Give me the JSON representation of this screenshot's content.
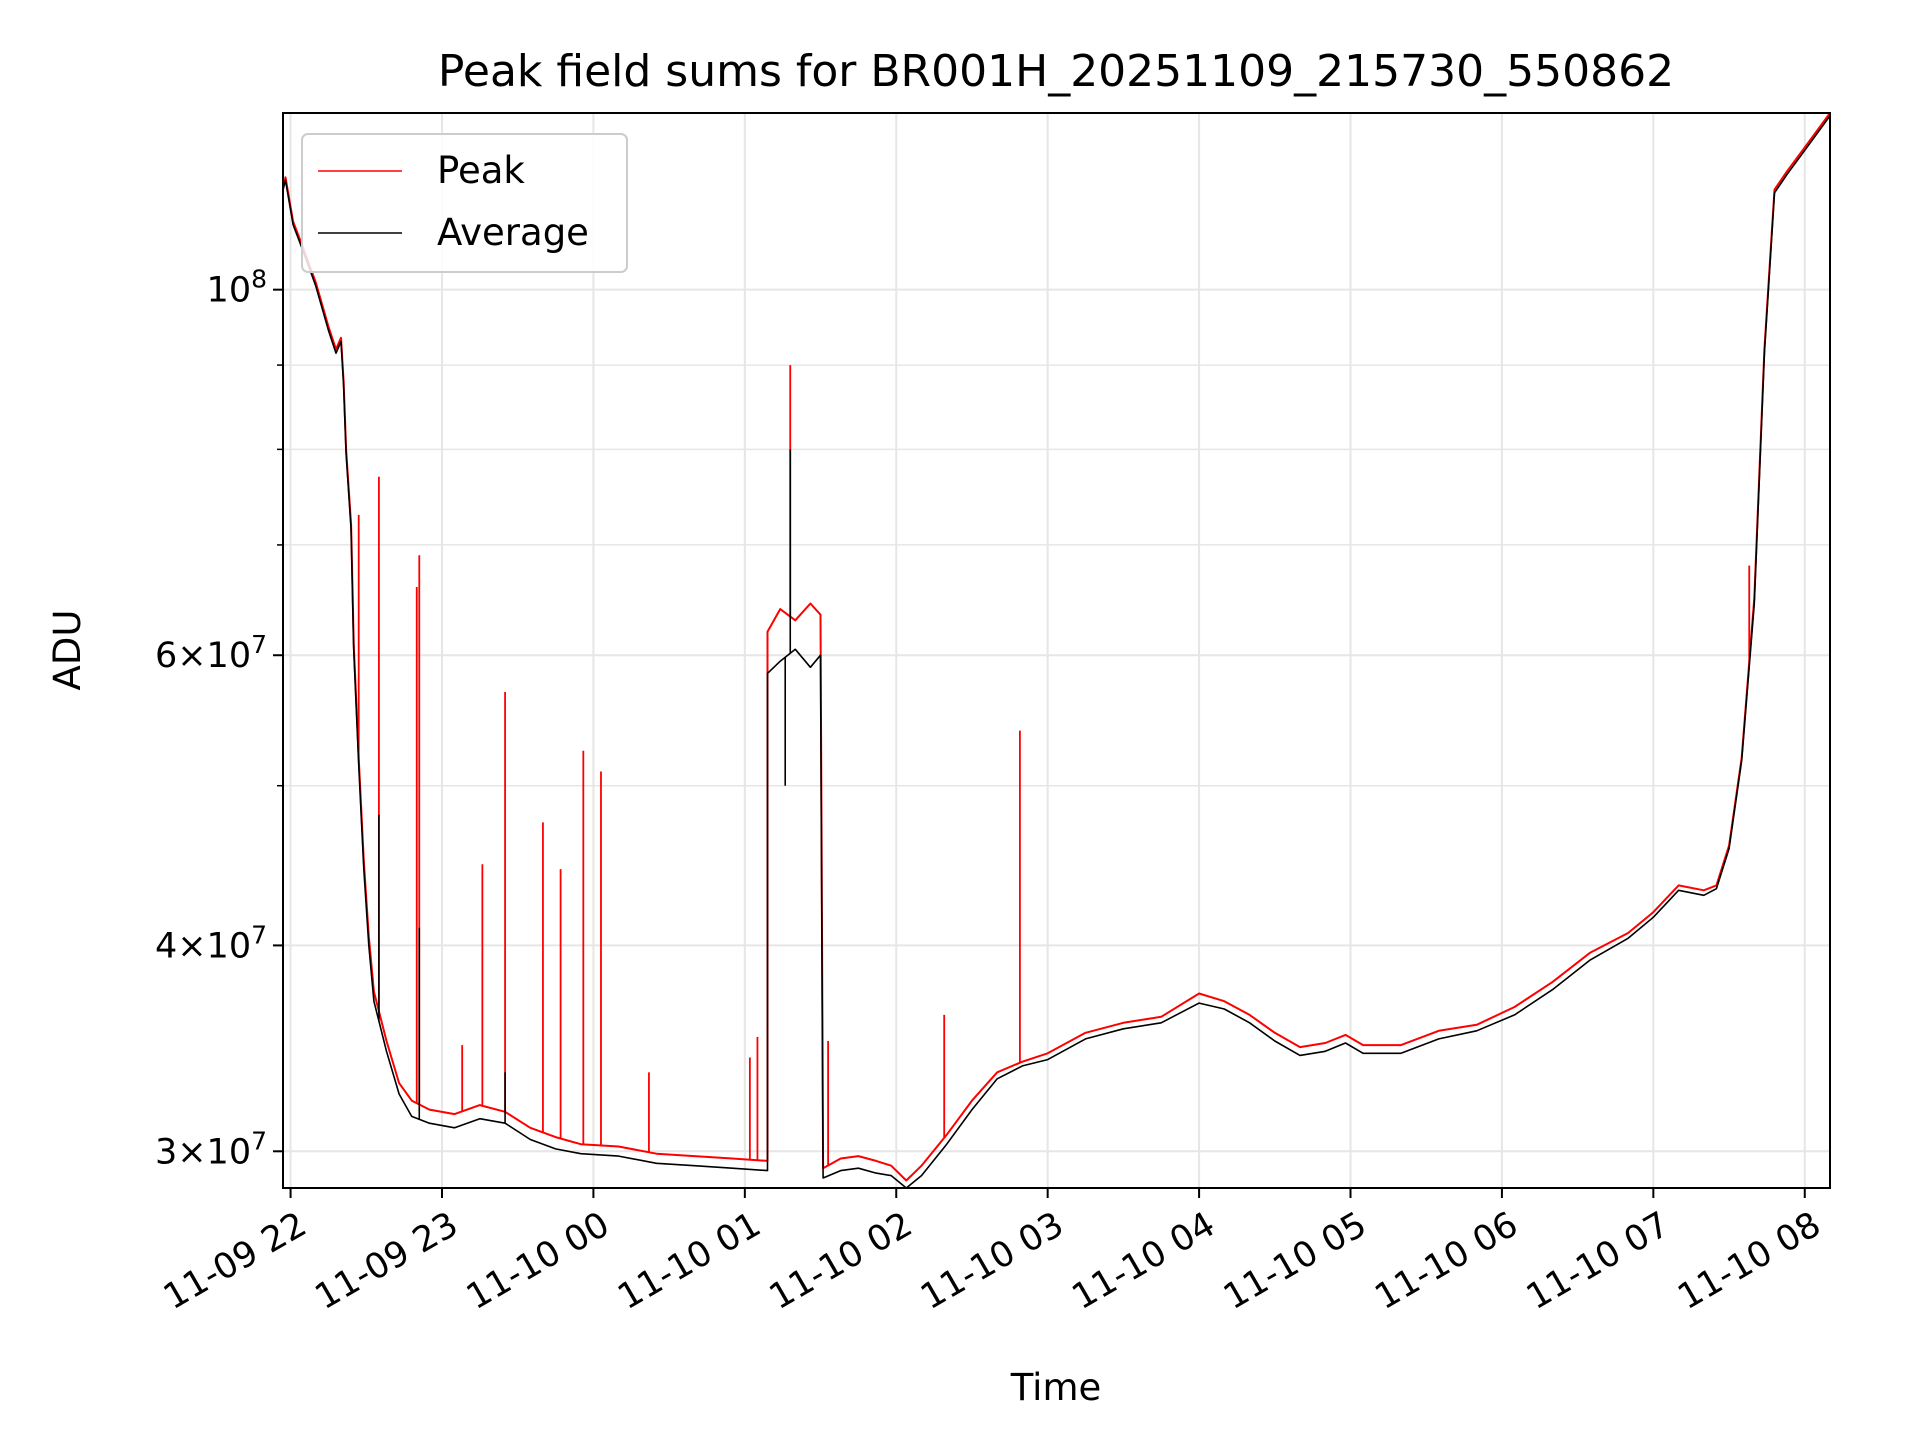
{
  "chart_data": {
    "type": "line",
    "title": "Peak field sums for BR001H_20251109_215730_550862",
    "xlabel": "Time",
    "ylabel": "ADU",
    "xlim": [
      "2025-11-09 21:57",
      "2025-11-10 08:10"
    ],
    "ylim": [
      28500000,
      128000000
    ],
    "yscale": "log",
    "grid": true,
    "legend_position": "top-left",
    "x_ticks": [
      {
        "label": "11-09 22",
        "value": "2025-11-09 22:00"
      },
      {
        "label": "11-09 23",
        "value": "2025-11-09 23:00"
      },
      {
        "label": "11-10 00",
        "value": "2025-11-10 00:00"
      },
      {
        "label": "11-10 01",
        "value": "2025-11-10 01:00"
      },
      {
        "label": "11-10 02",
        "value": "2025-11-10 02:00"
      },
      {
        "label": "11-10 03",
        "value": "2025-11-10 03:00"
      },
      {
        "label": "11-10 04",
        "value": "2025-11-10 04:00"
      },
      {
        "label": "11-10 05",
        "value": "2025-11-10 05:00"
      },
      {
        "label": "11-10 06",
        "value": "2025-11-10 06:00"
      },
      {
        "label": "11-10 07",
        "value": "2025-11-10 07:00"
      },
      {
        "label": "11-10 08",
        "value": "2025-11-10 08:00"
      }
    ],
    "y_ticks": [
      {
        "base": "3",
        "exp": "7",
        "value": 30000000
      },
      {
        "base": "4",
        "exp": "7",
        "value": 40000000
      },
      {
        "base": "6",
        "exp": "7",
        "value": 60000000
      },
      {
        "base": "",
        "exp": "8",
        "value": 100000000
      }
    ],
    "series": [
      {
        "name": "Peak",
        "color": "#ff0000",
        "points": [
          [
            "2025-11-09 21:57",
            115000000
          ],
          [
            "2025-11-09 21:58",
            117000000
          ],
          [
            "2025-11-09 22:01",
            110000000
          ],
          [
            "2025-11-09 22:05",
            106000000
          ],
          [
            "2025-11-09 22:10",
            101000000
          ],
          [
            "2025-11-09 22:15",
            95000000
          ],
          [
            "2025-11-09 22:18",
            92000000
          ],
          [
            "2025-11-09 22:20",
            93500000
          ],
          [
            "2025-11-09 22:21",
            88000000
          ],
          [
            "2025-11-09 22:22",
            80000000
          ],
          [
            "2025-11-09 22:24",
            72000000
          ],
          [
            "2025-11-09 22:25",
            61000000
          ],
          [
            "2025-11-09 22:27",
            52000000
          ],
          [
            "2025-11-09 22:29",
            45000000
          ],
          [
            "2025-11-09 22:31",
            40500000
          ],
          [
            "2025-11-09 22:33",
            37500000
          ],
          [
            "2025-11-09 22:38",
            35000000
          ],
          [
            "2025-11-09 22:43",
            33000000
          ],
          [
            "2025-11-09 22:48",
            32200000
          ],
          [
            "2025-11-09 22:55",
            31800000
          ],
          [
            "2025-11-09 23:05",
            31600000
          ],
          [
            "2025-11-09 23:15",
            32000000
          ],
          [
            "2025-11-09 23:25",
            31700000
          ],
          [
            "2025-11-09 23:35",
            31000000
          ],
          [
            "2025-11-09 23:45",
            30600000
          ],
          [
            "2025-11-09 23:55",
            30300000
          ],
          [
            "2025-11-10 00:10",
            30200000
          ],
          [
            "2025-11-10 00:25",
            29900000
          ],
          [
            "2025-11-10 00:40",
            29800000
          ],
          [
            "2025-11-10 00:55",
            29700000
          ],
          [
            "2025-11-10 01:09",
            29600000
          ],
          [
            "2025-11-10 01:09",
            62000000
          ],
          [
            "2025-11-10 01:14",
            64000000
          ],
          [
            "2025-11-10 01:20",
            63000000
          ],
          [
            "2025-11-10 01:26",
            64500000
          ],
          [
            "2025-11-10 01:30",
            63500000
          ],
          [
            "2025-11-10 01:31",
            29300000
          ],
          [
            "2025-11-10 01:38",
            29700000
          ],
          [
            "2025-11-10 01:45",
            29800000
          ],
          [
            "2025-11-10 01:52",
            29600000
          ],
          [
            "2025-11-10 01:58",
            29400000
          ],
          [
            "2025-11-10 02:04",
            28800000
          ],
          [
            "2025-11-10 02:10",
            29400000
          ],
          [
            "2025-11-10 02:20",
            30700000
          ],
          [
            "2025-11-10 02:30",
            32200000
          ],
          [
            "2025-11-10 02:40",
            33500000
          ],
          [
            "2025-11-10 02:50",
            34000000
          ],
          [
            "2025-11-10 03:00",
            34400000
          ],
          [
            "2025-11-10 03:15",
            35400000
          ],
          [
            "2025-11-10 03:30",
            35900000
          ],
          [
            "2025-11-10 03:45",
            36200000
          ],
          [
            "2025-11-10 04:00",
            37400000
          ],
          [
            "2025-11-10 04:10",
            37000000
          ],
          [
            "2025-11-10 04:20",
            36300000
          ],
          [
            "2025-11-10 04:30",
            35400000
          ],
          [
            "2025-11-10 04:40",
            34700000
          ],
          [
            "2025-11-10 04:50",
            34900000
          ],
          [
            "2025-11-10 04:58",
            35300000
          ],
          [
            "2025-11-10 05:05",
            34800000
          ],
          [
            "2025-11-10 05:20",
            34800000
          ],
          [
            "2025-11-10 05:35",
            35500000
          ],
          [
            "2025-11-10 05:50",
            35800000
          ],
          [
            "2025-11-10 06:05",
            36700000
          ],
          [
            "2025-11-10 06:20",
            38000000
          ],
          [
            "2025-11-10 06:35",
            39600000
          ],
          [
            "2025-11-10 06:50",
            40700000
          ],
          [
            "2025-11-10 07:00",
            41900000
          ],
          [
            "2025-11-10 07:10",
            43500000
          ],
          [
            "2025-11-10 07:20",
            43200000
          ],
          [
            "2025-11-10 07:25",
            43500000
          ],
          [
            "2025-11-10 07:30",
            46000000
          ],
          [
            "2025-11-10 07:35",
            52000000
          ],
          [
            "2025-11-10 07:40",
            65000000
          ],
          [
            "2025-11-10 07:44",
            92000000
          ],
          [
            "2025-11-10 07:48",
            115000000
          ],
          [
            "2025-11-10 07:53",
            118000000
          ],
          [
            "2025-11-10 08:00",
            122000000
          ],
          [
            "2025-11-10 08:10",
            128000000
          ]
        ],
        "spikes": [
          [
            "2025-11-09 22:27",
            73000000
          ],
          [
            "2025-11-09 22:35",
            77000000
          ],
          [
            "2025-11-09 22:50",
            66000000
          ],
          [
            "2025-11-09 22:51",
            69000000
          ],
          [
            "2025-11-09 23:08",
            34800000
          ],
          [
            "2025-11-09 23:16",
            44800000
          ],
          [
            "2025-11-09 23:25",
            57000000
          ],
          [
            "2025-11-09 23:40",
            47500000
          ],
          [
            "2025-11-09 23:47",
            44500000
          ],
          [
            "2025-11-09 23:56",
            52500000
          ],
          [
            "2025-11-10 00:03",
            51000000
          ],
          [
            "2025-11-10 00:22",
            33500000
          ],
          [
            "2025-11-10 01:02",
            34200000
          ],
          [
            "2025-11-10 01:05",
            35200000
          ],
          [
            "2025-11-10 01:18",
            90000000
          ],
          [
            "2025-11-10 01:33",
            35000000
          ],
          [
            "2025-11-10 02:19",
            36300000
          ],
          [
            "2025-11-10 02:49",
            54000000
          ],
          [
            "2025-11-10 07:38",
            68000000
          ]
        ]
      },
      {
        "name": "Average",
        "color": "#000000",
        "points": [
          [
            "2025-11-09 21:57",
            115000000
          ],
          [
            "2025-11-09 21:58",
            116500000
          ],
          [
            "2025-11-09 22:01",
            109500000
          ],
          [
            "2025-11-09 22:05",
            105500000
          ],
          [
            "2025-11-09 22:10",
            100500000
          ],
          [
            "2025-11-09 22:15",
            94500000
          ],
          [
            "2025-11-09 22:18",
            91500000
          ],
          [
            "2025-11-09 22:20",
            93000000
          ],
          [
            "2025-11-09 22:21",
            87500000
          ],
          [
            "2025-11-09 22:22",
            79500000
          ],
          [
            "2025-11-09 22:24",
            71500000
          ],
          [
            "2025-11-09 22:25",
            60500000
          ],
          [
            "2025-11-09 22:27",
            51500000
          ],
          [
            "2025-11-09 22:29",
            44500000
          ],
          [
            "2025-11-09 22:31",
            40000000
          ],
          [
            "2025-11-09 22:33",
            37000000
          ],
          [
            "2025-11-09 22:38",
            34500000
          ],
          [
            "2025-11-09 22:43",
            32500000
          ],
          [
            "2025-11-09 22:48",
            31500000
          ],
          [
            "2025-11-09 22:55",
            31200000
          ],
          [
            "2025-11-09 23:05",
            31000000
          ],
          [
            "2025-11-09 23:15",
            31400000
          ],
          [
            "2025-11-09 23:25",
            31200000
          ],
          [
            "2025-11-09 23:35",
            30500000
          ],
          [
            "2025-11-09 23:45",
            30100000
          ],
          [
            "2025-11-09 23:55",
            29900000
          ],
          [
            "2025-11-10 00:10",
            29800000
          ],
          [
            "2025-11-10 00:25",
            29500000
          ],
          [
            "2025-11-10 00:40",
            29400000
          ],
          [
            "2025-11-10 00:55",
            29300000
          ],
          [
            "2025-11-10 01:09",
            29200000
          ],
          [
            "2025-11-10 01:09",
            58500000
          ],
          [
            "2025-11-10 01:14",
            59500000
          ],
          [
            "2025-11-10 01:20",
            60500000
          ],
          [
            "2025-11-10 01:26",
            59000000
          ],
          [
            "2025-11-10 01:30",
            60000000
          ],
          [
            "2025-11-10 01:31",
            28900000
          ],
          [
            "2025-11-10 01:38",
            29200000
          ],
          [
            "2025-11-10 01:45",
            29300000
          ],
          [
            "2025-11-10 01:52",
            29100000
          ],
          [
            "2025-11-10 01:58",
            29000000
          ],
          [
            "2025-11-10 02:04",
            28500000
          ],
          [
            "2025-11-10 02:10",
            29000000
          ],
          [
            "2025-11-10 02:20",
            30300000
          ],
          [
            "2025-11-10 02:30",
            31800000
          ],
          [
            "2025-11-10 02:40",
            33200000
          ],
          [
            "2025-11-10 02:50",
            33800000
          ],
          [
            "2025-11-10 03:00",
            34100000
          ],
          [
            "2025-11-10 03:15",
            35100000
          ],
          [
            "2025-11-10 03:30",
            35600000
          ],
          [
            "2025-11-10 03:45",
            35900000
          ],
          [
            "2025-11-10 04:00",
            36900000
          ],
          [
            "2025-11-10 04:10",
            36600000
          ],
          [
            "2025-11-10 04:20",
            35900000
          ],
          [
            "2025-11-10 04:30",
            35000000
          ],
          [
            "2025-11-10 04:40",
            34300000
          ],
          [
            "2025-11-10 04:50",
            34500000
          ],
          [
            "2025-11-10 04:58",
            34900000
          ],
          [
            "2025-11-10 05:05",
            34400000
          ],
          [
            "2025-11-10 05:20",
            34400000
          ],
          [
            "2025-11-10 05:35",
            35100000
          ],
          [
            "2025-11-10 05:50",
            35500000
          ],
          [
            "2025-11-10 06:05",
            36300000
          ],
          [
            "2025-11-10 06:20",
            37600000
          ],
          [
            "2025-11-10 06:35",
            39200000
          ],
          [
            "2025-11-10 06:50",
            40400000
          ],
          [
            "2025-11-10 07:00",
            41600000
          ],
          [
            "2025-11-10 07:10",
            43200000
          ],
          [
            "2025-11-10 07:20",
            42900000
          ],
          [
            "2025-11-10 07:25",
            43300000
          ],
          [
            "2025-11-10 07:30",
            45800000
          ],
          [
            "2025-11-10 07:35",
            51800000
          ],
          [
            "2025-11-10 07:40",
            64500000
          ],
          [
            "2025-11-10 07:44",
            91500000
          ],
          [
            "2025-11-10 07:48",
            114500000
          ],
          [
            "2025-11-10 07:53",
            117500000
          ],
          [
            "2025-11-10 08:00",
            121500000
          ],
          [
            "2025-11-10 08:10",
            127500000
          ]
        ],
        "spikes": [
          [
            "2025-11-09 22:35",
            48000000
          ],
          [
            "2025-11-09 22:51",
            41000000
          ],
          [
            "2025-11-09 23:25",
            33500000
          ],
          [
            "2025-11-10 01:16",
            50000000
          ],
          [
            "2025-11-10 01:18",
            80000000
          ]
        ]
      }
    ]
  }
}
